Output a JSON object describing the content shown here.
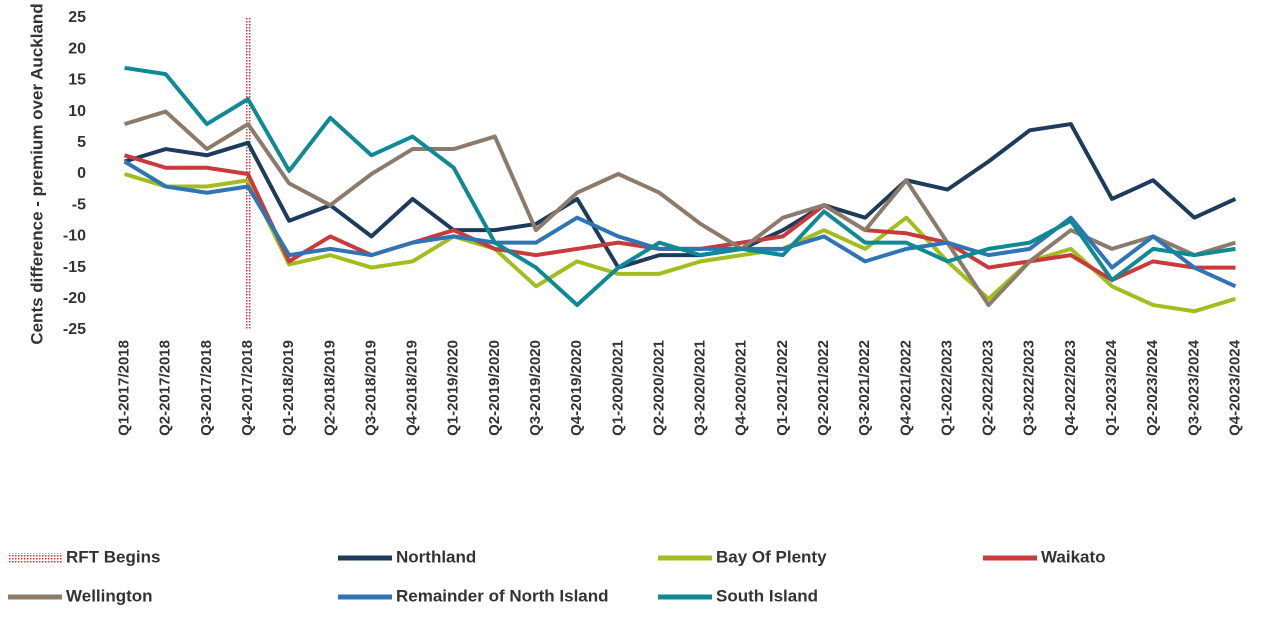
{
  "chart_data": {
    "type": "line",
    "y_label": "Cents difference - premium over Auckland",
    "categories": [
      "Q1-2017/2018",
      "Q2-2017/2018",
      "Q3-2017/2018",
      "Q4-2017/2018",
      "Q1-2018/2019",
      "Q2-2018/2019",
      "Q3-2018/2019",
      "Q4-2018/2019",
      "Q1-2019/2020",
      "Q2-2019/2020",
      "Q3-2019/2020",
      "Q4-2019/2020",
      "Q1-2020/2021",
      "Q2-2020/2021",
      "Q3-2020/2021",
      "Q4-2020/2021",
      "Q1-2021/2022",
      "Q2-2021/2022",
      "Q3-2021/2022",
      "Q4-2021/2022",
      "Q1-2022/2023",
      "Q2-2022/2023",
      "Q3-2022/2023",
      "Q4-2022/2023",
      "Q1-2023/2024",
      "Q2-2023/2024",
      "Q3-2023/2024",
      "Q4-2023/2024"
    ],
    "series": [
      {
        "name": "Northland",
        "color": "#1d3b5c",
        "values": [
          2,
          4,
          3,
          5,
          -7.5,
          -5,
          -10,
          -4,
          -9,
          -9,
          -8,
          -4,
          -15,
          -13,
          -13,
          -12,
          -9,
          -5,
          -7,
          -1,
          -2.5,
          2,
          7,
          8,
          -4,
          -1,
          -7,
          -4
        ]
      },
      {
        "name": "Bay Of Plenty",
        "color": "#a3bd1f",
        "values": [
          0,
          -2,
          -2,
          -1,
          -14.5,
          -13,
          -15,
          -14,
          -10,
          -12,
          -18,
          -14,
          -16,
          -16,
          -14,
          -13,
          -12,
          -9,
          -12,
          -7,
          -14,
          -20,
          -14,
          -12,
          -18,
          -21,
          -22,
          -20
        ]
      },
      {
        "name": "Waikato",
        "color": "#c93a3c",
        "values": [
          3,
          1,
          1,
          0,
          -14,
          -10,
          -13,
          -11,
          -9,
          -12,
          -13,
          -12,
          -11,
          -12,
          -12,
          -11,
          -10,
          -5,
          -9,
          -9.5,
          -11,
          -15,
          -14,
          -13,
          -17,
          -14,
          -15,
          -15
        ]
      },
      {
        "name": "Wellington",
        "color": "#8c7b6b",
        "values": [
          8,
          10,
          4,
          8,
          -1.5,
          -5,
          0,
          4,
          4,
          6,
          -9,
          -3,
          0,
          -3,
          -8,
          -12,
          -7,
          -5,
          -9,
          -1,
          -11,
          -21,
          -14,
          -9,
          -12,
          -10,
          -13,
          -11
        ]
      },
      {
        "name": "Remainder of North Island",
        "color": "#2f75b5",
        "values": [
          2,
          -2,
          -3,
          -2,
          -13,
          -12,
          -13,
          -11,
          -10,
          -11,
          -11,
          -7,
          -10,
          -12,
          -12,
          -12,
          -12,
          -10,
          -14,
          -12,
          -11,
          -13,
          -12,
          -7,
          -15,
          -10,
          -15,
          -18
        ]
      },
      {
        "name": "South Island",
        "color": "#0f8a94",
        "values": [
          17,
          16,
          8,
          12,
          0.5,
          9,
          3,
          6,
          1,
          -11,
          -15,
          -21,
          -15,
          -11,
          -13,
          -12,
          -13,
          -6,
          -11,
          -11,
          -14,
          -12,
          -11,
          -7.5,
          -17,
          -12,
          -13,
          -12
        ]
      }
    ],
    "vline": {
      "name": "RFT Begins",
      "category": "Q4-2017/2018",
      "color": "#d9363e"
    },
    "ylim": [
      -25,
      25
    ],
    "yticks": [
      -25,
      -20,
      -15,
      -10,
      -5,
      0,
      5,
      10,
      15,
      20,
      25
    ]
  }
}
